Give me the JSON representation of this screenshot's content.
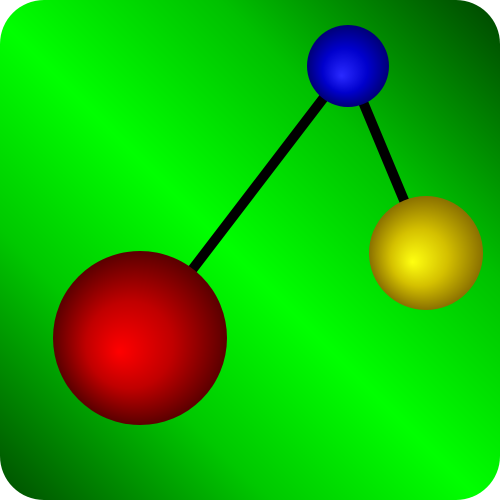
{
  "icon": {
    "name": "molecule-graph-icon",
    "background_colors": [
      "#005800",
      "#00ff00",
      "#005000"
    ],
    "bond_color": "#000000",
    "nodes": [
      {
        "id": "blue",
        "color": "#0000cc",
        "highlight": "#2a2aff"
      },
      {
        "id": "yellow",
        "color": "#d4c000",
        "highlight": "#ffff10"
      },
      {
        "id": "red",
        "color": "#cc0000",
        "highlight": "#ff0000"
      }
    ]
  }
}
